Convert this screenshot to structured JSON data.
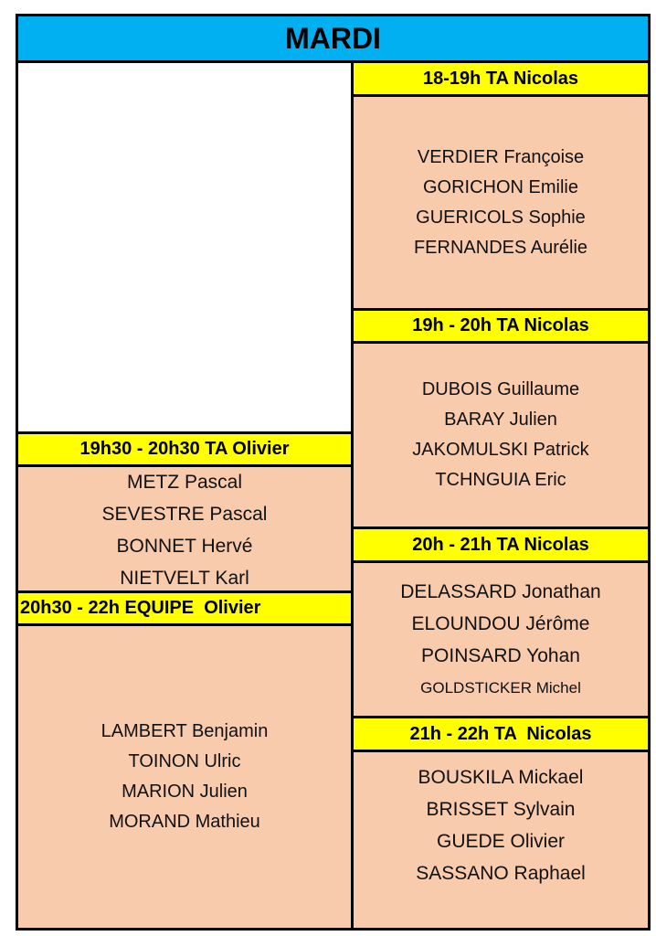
{
  "title": "MARDI",
  "colors": {
    "title_bg": "#00B0F0",
    "header_bg": "#FFFF00",
    "body_bg": "#F8CBAD"
  },
  "left": [
    {
      "header": "19h30 - 20h30 TA Olivier",
      "names": [
        "METZ Pascal",
        "SEVESTRE Pascal",
        "BONNET Hervé",
        "NIETVELT Karl"
      ]
    },
    {
      "header": "20h30 - 22h EQUIPE  Olivier",
      "names": [
        "LAMBERT Benjamin",
        "TOINON Ulric",
        "MARION Julien",
        "MORAND Mathieu"
      ]
    }
  ],
  "right": [
    {
      "header": "18-19h TA Nicolas",
      "names": [
        "VERDIER Françoise",
        "GORICHON Emilie",
        "GUERICOLS Sophie",
        "FERNANDES Aurélie"
      ]
    },
    {
      "header": "19h - 20h TA Nicolas",
      "names": [
        "DUBOIS Guillaume",
        "BARAY Julien",
        "JAKOMULSKI Patrick",
        "TCHNGUIA Eric"
      ]
    },
    {
      "header": "20h - 21h TA Nicolas",
      "names": [
        "DELASSARD Jonathan",
        "ELOUNDOU Jérôme",
        "POINSARD Yohan",
        "GOLDSTICKER Michel"
      ]
    },
    {
      "header": "21h - 22h TA  Nicolas",
      "names": [
        "BOUSKILA Mickael",
        "BRISSET Sylvain",
        "GUEDE Olivier",
        "SASSANO Raphael"
      ]
    }
  ]
}
